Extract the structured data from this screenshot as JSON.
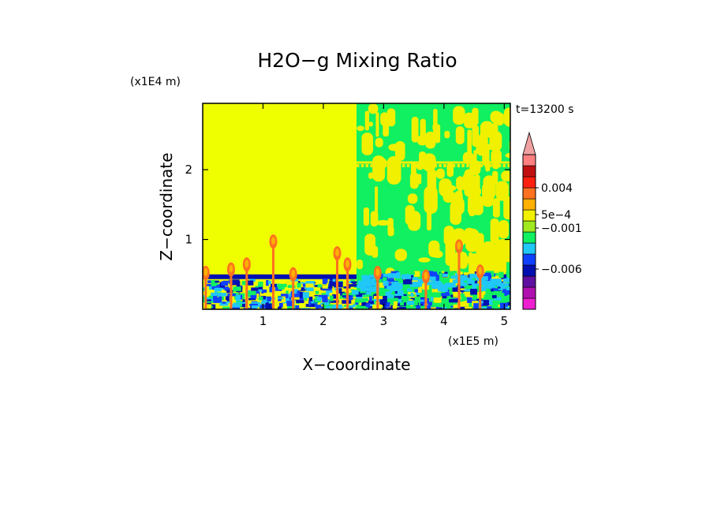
{
  "chart_data": {
    "type": "heatmap",
    "title": "H2O−g Mixing Ratio",
    "xlabel": "X−coordinate",
    "ylabel": "Z−coordinate",
    "x_unit": "(x1E5 m)",
    "y_unit": "(x1E4 m)",
    "time_label": "t=13200 s",
    "xlim": [
      0,
      5.1
    ],
    "ylim": [
      0,
      2.95
    ],
    "x_ticks": [
      1,
      2,
      3,
      4,
      5
    ],
    "y_ticks": [
      1,
      2
    ],
    "colorbar": {
      "colors": [
        "#ee1fd0",
        "#b010b0",
        "#6010a0",
        "#0010b0",
        "#1040ff",
        "#20c8f8",
        "#10f060",
        "#a0e820",
        "#f0f000",
        "#ffb000",
        "#ff7020",
        "#ff2010",
        "#c01010",
        "#ff8080",
        "#f0a0a0"
      ],
      "labels": [
        {
          "text": "0.004",
          "value": 0.004
        },
        {
          "text": "5e−4",
          "value": 0.0005
        },
        {
          "text": "−0.001",
          "value": -0.001
        },
        {
          "text": "−0.006",
          "value": -0.006
        }
      ],
      "extend": "max"
    },
    "regions": {
      "left_fill": "#f0ff00",
      "right_fill": "#10f060",
      "boundary_x": 2.55,
      "right_structure": "#f0f000",
      "low_band_top": 0.5,
      "low_colors": [
        "#0010b0",
        "#1040ff",
        "#20c8f8",
        "#10f060",
        "#f0f000"
      ],
      "plumes": [
        {
          "x": 0.05,
          "top": 0.6
        },
        {
          "x": 0.47,
          "top": 0.65
        },
        {
          "x": 0.73,
          "top": 0.72
        },
        {
          "x": 1.17,
          "top": 1.05
        },
        {
          "x": 1.5,
          "top": 0.58
        },
        {
          "x": 2.23,
          "top": 0.88
        },
        {
          "x": 2.4,
          "top": 0.72
        },
        {
          "x": 2.9,
          "top": 0.6
        },
        {
          "x": 3.7,
          "top": 0.55
        },
        {
          "x": 4.25,
          "top": 0.98
        },
        {
          "x": 4.6,
          "top": 0.62
        }
      ]
    }
  }
}
